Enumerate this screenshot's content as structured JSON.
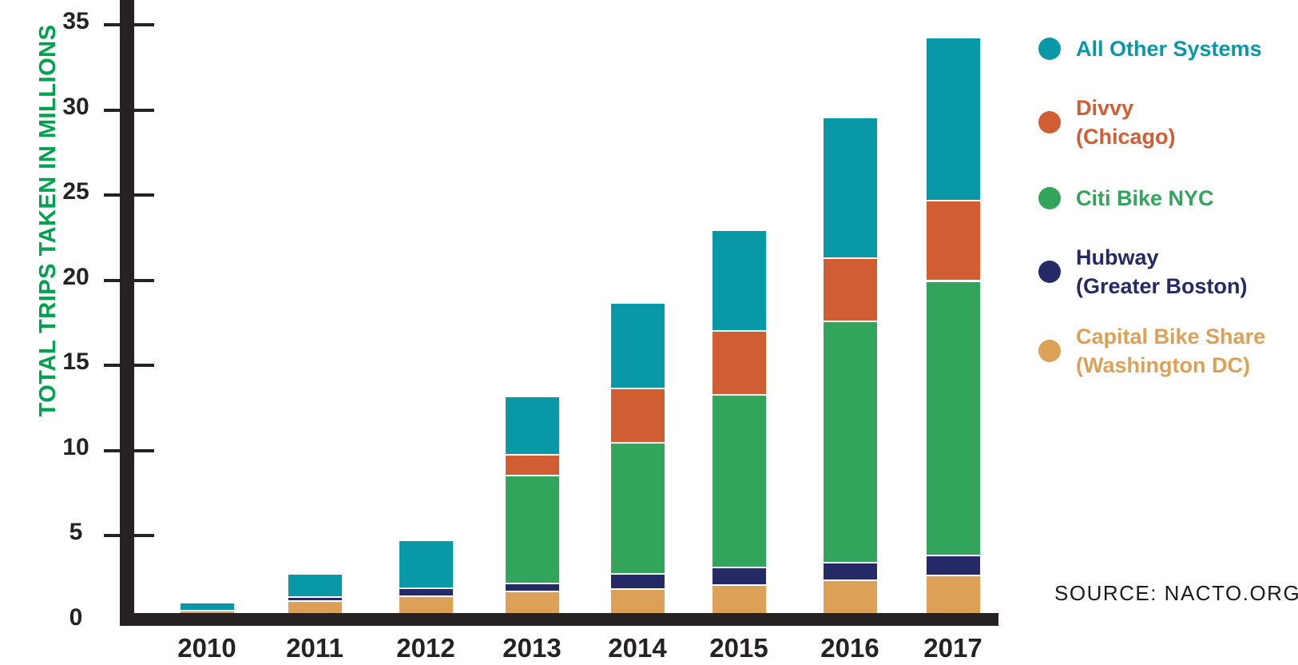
{
  "page": {
    "background": "#ffffff"
  },
  "source": {
    "text": "SOURCE: NACTO.ORG"
  },
  "chart_data": {
    "type": "bar",
    "stacked": true,
    "title": "",
    "xlabel": "",
    "ylabel": "TOTAL TRIPS TAKEN IN MILLIONS",
    "ylabel_color": "#00A14F",
    "axis_color": "#262224",
    "grid": false,
    "legend_position": "right",
    "categories": [
      "2010",
      "2011",
      "2012",
      "2013",
      "2014",
      "2015",
      "2016",
      "2017"
    ],
    "yticks": [
      0,
      5,
      10,
      15,
      20,
      25,
      30,
      35
    ],
    "ylim": [
      0,
      36.5
    ],
    "series": [
      {
        "name": "Capital Bike Share (Washington DC)",
        "color": "#DDA057",
        "values": [
          0.65,
          1.2,
          1.5,
          1.75,
          1.9,
          2.15,
          2.4,
          2.7
        ]
      },
      {
        "name": "Hubway (Greater Boston)",
        "color": "#252A66",
        "values": [
          0,
          0.25,
          0.45,
          0.5,
          0.9,
          1.0,
          1.05,
          1.15
        ]
      },
      {
        "name": "Citi Bike NYC",
        "color": "#32A45B",
        "values": [
          0,
          0,
          0,
          6.3,
          7.7,
          10.15,
          14.2,
          16.15
        ]
      },
      {
        "name": "Divvy (Chicago)",
        "color": "#D15D33",
        "values": [
          0,
          0,
          0,
          1.25,
          3.2,
          3.75,
          3.7,
          4.7
        ]
      },
      {
        "name": "All Other Systems",
        "color": "#0999A6",
        "values": [
          0.45,
          1.35,
          2.8,
          3.4,
          5.0,
          5.95,
          8.25,
          9.6
        ]
      }
    ],
    "totals": [
      1.1,
      2.8,
      4.75,
      13.2,
      18.7,
      23.0,
      29.6,
      34.3
    ],
    "legend": [
      {
        "slug": "all-other-systems",
        "color": "#0999A6",
        "lines": [
          "All Other Systems"
        ]
      },
      {
        "slug": "divvy",
        "color": "#D15D33",
        "lines": [
          "Divvy",
          "(Chicago)"
        ]
      },
      {
        "slug": "citi-bike-nyc",
        "color": "#32A45B",
        "lines": [
          "Citi Bike NYC"
        ]
      },
      {
        "slug": "hubway",
        "color": "#252A66",
        "lines": [
          "Hubway",
          "(Greater Boston)"
        ]
      },
      {
        "slug": "capital-bike-share",
        "color": "#DDA057",
        "lines": [
          "Capital Bike Share",
          "(Washington DC)"
        ]
      }
    ]
  }
}
